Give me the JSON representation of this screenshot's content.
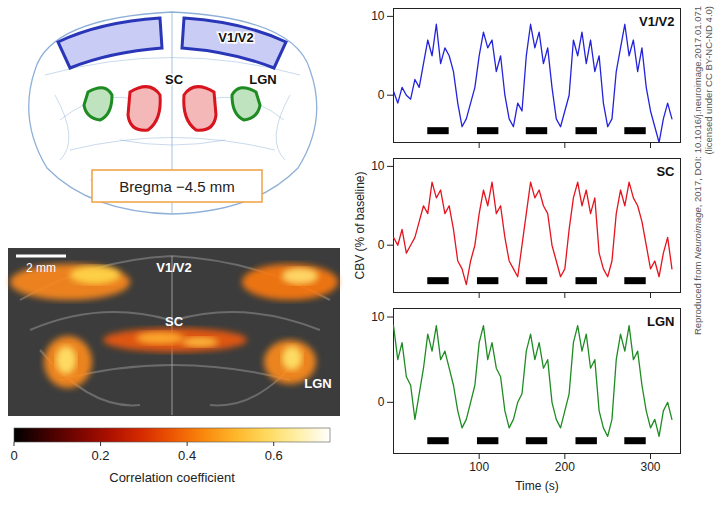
{
  "atlas": {
    "labels": [
      "V1/V2",
      "SC",
      "LGN"
    ],
    "bregma": "Bregma −4.5 mm"
  },
  "correlation_map": {
    "scale_bar": "2 mm",
    "labels": [
      "V1/V2",
      "SC",
      "LGN"
    ],
    "colorbar": {
      "range": [
        0,
        0.73
      ],
      "ticks": [
        0,
        0.2,
        0.4,
        0.6
      ],
      "label": "Correlation coefficient"
    }
  },
  "chart_data": [
    {
      "type": "line",
      "title": "V1/V2",
      "color": "#2323dc",
      "x": [
        0,
        5,
        10,
        15,
        20,
        25,
        30,
        35,
        40,
        45,
        50,
        55,
        60,
        65,
        70,
        75,
        80,
        85,
        90,
        95,
        100,
        105,
        110,
        115,
        120,
        125,
        130,
        135,
        140,
        145,
        150,
        155,
        160,
        165,
        170,
        175,
        180,
        185,
        190,
        195,
        200,
        205,
        210,
        215,
        220,
        225,
        230,
        235,
        240,
        245,
        250,
        255,
        260,
        265,
        270,
        275,
        280,
        285,
        290,
        295,
        300,
        305,
        310,
        315,
        320,
        325
      ],
      "values": [
        0.5,
        -1,
        1,
        0,
        -0.5,
        2,
        1,
        4,
        7,
        5,
        9,
        4,
        6,
        5,
        3,
        -1,
        -4,
        -3,
        -1,
        1,
        5,
        8,
        6,
        7,
        3,
        5,
        0,
        -3,
        -4,
        -1,
        -2,
        5,
        9,
        6,
        8,
        4,
        6,
        1,
        -3,
        -4,
        -2,
        0,
        7,
        5,
        8,
        4,
        7,
        3,
        5,
        -1,
        -4,
        -3,
        3,
        6,
        9,
        5,
        7,
        3,
        6,
        1,
        -2,
        -4,
        -6,
        -3,
        -1,
        -3
      ],
      "stimulus": {
        "intervals": [
          [
            40,
            65
          ],
          [
            98,
            123
          ],
          [
            155,
            180
          ],
          [
            213,
            238
          ],
          [
            270,
            295
          ]
        ],
        "y": -4.5
      },
      "xlim": [
        0,
        335
      ],
      "ylim": [
        -6,
        11
      ],
      "xticks": [
        100,
        200,
        300
      ],
      "yticks": [
        0,
        10
      ],
      "tick_labels": "y"
    },
    {
      "type": "line",
      "title": "SC",
      "color": "#e5141e",
      "y_label": "CBV (% of baseline)",
      "x": [
        0,
        5,
        10,
        15,
        20,
        25,
        30,
        35,
        40,
        45,
        50,
        55,
        60,
        65,
        70,
        75,
        80,
        85,
        90,
        95,
        100,
        105,
        110,
        115,
        120,
        125,
        130,
        135,
        140,
        145,
        150,
        155,
        160,
        165,
        170,
        175,
        180,
        185,
        190,
        195,
        200,
        205,
        210,
        215,
        220,
        225,
        230,
        235,
        240,
        245,
        250,
        255,
        260,
        265,
        270,
        275,
        280,
        285,
        290,
        295,
        300,
        305,
        310,
        315,
        320,
        325
      ],
      "values": [
        1,
        0,
        2,
        -1,
        0,
        1,
        3,
        5,
        4,
        8,
        6,
        7,
        4,
        5,
        2,
        -2,
        -3,
        -5,
        -2,
        0,
        4,
        7,
        5,
        8,
        4,
        5,
        1,
        -2,
        -3,
        -4,
        0,
        4,
        8,
        6,
        7,
        5,
        4,
        0,
        -2,
        -4,
        -3,
        2,
        6,
        8,
        5,
        7,
        4,
        6,
        -1,
        -3,
        -4,
        -2,
        4,
        7,
        5,
        8,
        6,
        5,
        3,
        0,
        -3,
        -2,
        -4,
        -1,
        1,
        -3
      ],
      "stimulus": {
        "intervals": [
          [
            40,
            65
          ],
          [
            98,
            123
          ],
          [
            155,
            180
          ],
          [
            213,
            238
          ],
          [
            270,
            295
          ]
        ],
        "y": -4.5
      },
      "xlim": [
        0,
        335
      ],
      "ylim": [
        -6,
        11
      ],
      "xticks": [
        100,
        200,
        300
      ],
      "yticks": [
        0,
        10
      ],
      "tick_labels": "y"
    },
    {
      "type": "line",
      "title": "LGN",
      "color": "#1f8c23",
      "x_label": "Time (s)",
      "x": [
        0,
        5,
        10,
        15,
        20,
        25,
        30,
        35,
        40,
        45,
        50,
        55,
        60,
        65,
        70,
        75,
        80,
        85,
        90,
        95,
        100,
        105,
        110,
        115,
        120,
        125,
        130,
        135,
        140,
        145,
        150,
        155,
        160,
        165,
        170,
        175,
        180,
        185,
        190,
        195,
        200,
        205,
        210,
        215,
        220,
        225,
        230,
        235,
        240,
        245,
        250,
        255,
        260,
        265,
        270,
        275,
        280,
        285,
        290,
        295,
        300,
        305,
        310,
        315,
        320,
        325
      ],
      "values": [
        9,
        5,
        7,
        3,
        2,
        -2,
        1,
        4,
        8,
        6,
        9,
        5,
        6,
        4,
        2,
        -1,
        -3,
        -2,
        0,
        2,
        7,
        9,
        5,
        7,
        4,
        3,
        -1,
        -3,
        -2,
        0,
        1,
        6,
        8,
        5,
        7,
        4,
        5,
        0,
        -2,
        -3,
        -1,
        1,
        7,
        9,
        6,
        8,
        4,
        5,
        -1,
        -3,
        -4,
        -2,
        5,
        8,
        6,
        9,
        5,
        6,
        2,
        -1,
        -3,
        -2,
        -4,
        -1,
        0,
        -2
      ],
      "stimulus": {
        "intervals": [
          [
            40,
            65
          ],
          [
            98,
            123
          ],
          [
            155,
            180
          ],
          [
            213,
            238
          ],
          [
            270,
            295
          ]
        ],
        "y": -4.5
      },
      "xlim": [
        0,
        335
      ],
      "ylim": [
        -6,
        11
      ],
      "xticks": [
        100,
        200,
        300
      ],
      "yticks": [
        0,
        10
      ]
    }
  ],
  "credit": {
    "before": "Reproduced from ",
    "journal": "Neuroimage",
    "after": ", 2017, DOI: 10.1016/j.neuroimage.2017.01.071",
    "line2": "(licensed under CC BY-NC-ND 4.0)"
  }
}
